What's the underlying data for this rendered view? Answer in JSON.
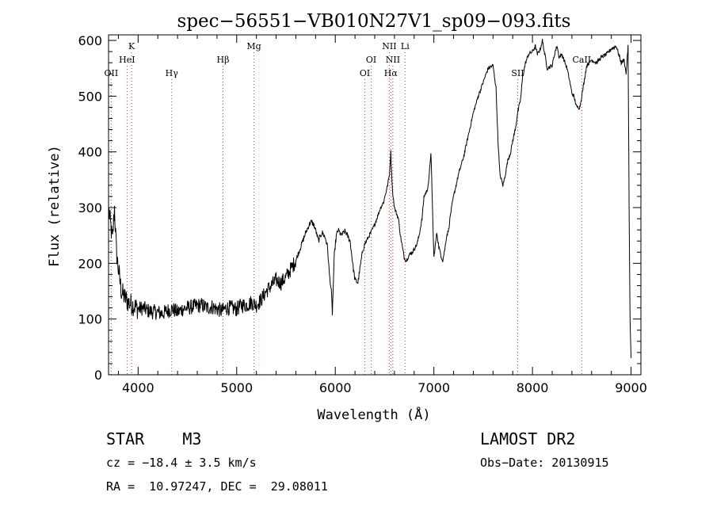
{
  "chart_data": {
    "type": "line",
    "title": "spec−56551−VB010N27V1_sp09−093.fits",
    "xlabel": "Wavelength (Å)",
    "ylabel": "Flux (relative)",
    "xlim": [
      3700,
      9100
    ],
    "ylim": [
      0,
      610
    ],
    "xticks": [
      4000,
      5000,
      6000,
      7000,
      8000,
      9000
    ],
    "yticks": [
      0,
      100,
      200,
      300,
      400,
      500,
      600
    ],
    "grid": false,
    "series": [
      {
        "x": [
          3700,
          3720,
          3740,
          3760,
          3780,
          3800,
          3830,
          3860,
          3900,
          3950,
          4000,
          4050,
          4100,
          4150,
          4200,
          4250,
          4300,
          4350,
          4400,
          4450,
          4500,
          4550,
          4600,
          4650,
          4700,
          4750,
          4800,
          4850,
          4900,
          4950,
          5000,
          5050,
          5100,
          5150,
          5200,
          5250,
          5300,
          5350,
          5400,
          5450,
          5500,
          5550,
          5600,
          5650,
          5700,
          5750,
          5780,
          5800,
          5830,
          5850,
          5870,
          5900,
          5920,
          5940,
          5960,
          5970,
          5990,
          6010,
          6030,
          6060,
          6100,
          6150,
          6180,
          6200,
          6230,
          6250,
          6280,
          6300,
          6330,
          6360,
          6380,
          6400,
          6430,
          6460,
          6490,
          6510,
          6530,
          6550,
          6563,
          6580,
          6600,
          6620,
          6640,
          6660,
          6680,
          6700,
          6720,
          6750,
          6780,
          6800,
          6830,
          6850,
          6880,
          6900,
          6930,
          6950,
          6970,
          7000,
          7030,
          7050,
          7070,
          7090,
          7110,
          7130,
          7150,
          7170,
          7200,
          7250,
          7300,
          7350,
          7400,
          7450,
          7500,
          7550,
          7600,
          7630,
          7650,
          7670,
          7700,
          7720,
          7750,
          7780,
          7800,
          7830,
          7850,
          7880,
          7900,
          7930,
          7960,
          8000,
          8030,
          8050,
          8080,
          8100,
          8150,
          8200,
          8230,
          8250,
          8270,
          8300,
          8350,
          8380,
          8400,
          8420,
          8450,
          8480,
          8500,
          8550,
          8600,
          8650,
          8700,
          8750,
          8800,
          8850,
          8900,
          8930,
          8950,
          8970,
          8980,
          8990,
          9000
        ],
        "y": [
          300,
          270,
          240,
          300,
          220,
          190,
          150,
          140,
          130,
          125,
          118,
          120,
          115,
          113,
          112,
          110,
          115,
          118,
          112,
          118,
          120,
          122,
          124,
          125,
          120,
          122,
          118,
          115,
          120,
          120,
          118,
          125,
          125,
          130,
          125,
          135,
          150,
          160,
          170,
          165,
          175,
          190,
          205,
          230,
          255,
          275,
          270,
          260,
          240,
          250,
          255,
          245,
          230,
          180,
          150,
          110,
          215,
          250,
          260,
          250,
          258,
          240,
          195,
          170,
          165,
          190,
          225,
          235,
          245,
          255,
          262,
          270,
          285,
          300,
          310,
          325,
          340,
          360,
          400,
          330,
          300,
          290,
          280,
          250,
          230,
          210,
          205,
          215,
          220,
          225,
          235,
          250,
          280,
          320,
          330,
          350,
          400,
          210,
          255,
          230,
          215,
          205,
          225,
          250,
          260,
          290,
          320,
          360,
          390,
          430,
          470,
          500,
          525,
          550,
          555,
          515,
          420,
          360,
          340,
          355,
          385,
          400,
          420,
          445,
          470,
          495,
          535,
          560,
          575,
          580,
          590,
          575,
          585,
          600,
          550,
          555,
          580,
          590,
          570,
          575,
          550,
          525,
          505,
          500,
          480,
          480,
          500,
          555,
          565,
          560,
          570,
          575,
          585,
          590,
          560,
          565,
          540,
          590,
          300,
          100,
          30
        ]
      }
    ],
    "lines": [
      {
        "label": "OII",
        "x": 3727,
        "row": 3
      },
      {
        "label": "HeI",
        "x": 3888,
        "row": 2
      },
      {
        "label": "K",
        "x": 3934,
        "row": 1
      },
      {
        "label": "Hγ",
        "x": 4341,
        "row": 3
      },
      {
        "label": "Hβ",
        "x": 4861,
        "row": 2
      },
      {
        "label": "Mg",
        "x": 5175,
        "row": 1
      },
      {
        "label": "OI",
        "x": 6300,
        "row": 3
      },
      {
        "label": "OI",
        "x": 6364,
        "row": 2
      },
      {
        "label": "NII",
        "x": 6548,
        "row": 1
      },
      {
        "label": "Hα",
        "x": 6563,
        "row": 3
      },
      {
        "label": "NII",
        "x": 6584,
        "row": 2
      },
      {
        "label": "Li",
        "x": 6708,
        "row": 1
      },
      {
        "label": "SII",
        "x": 7850,
        "row": 3
      },
      {
        "label": "CaII",
        "x": 8500,
        "row": 2
      }
    ]
  },
  "info": {
    "class": "STAR    M3",
    "survey": "LAMOST DR2",
    "cz": "cz = −18.4 ± 3.5 km/s",
    "obsdate": "Obs−Date: 20130915",
    "radec": "RA =  10.97247, DEC =  29.08011"
  }
}
